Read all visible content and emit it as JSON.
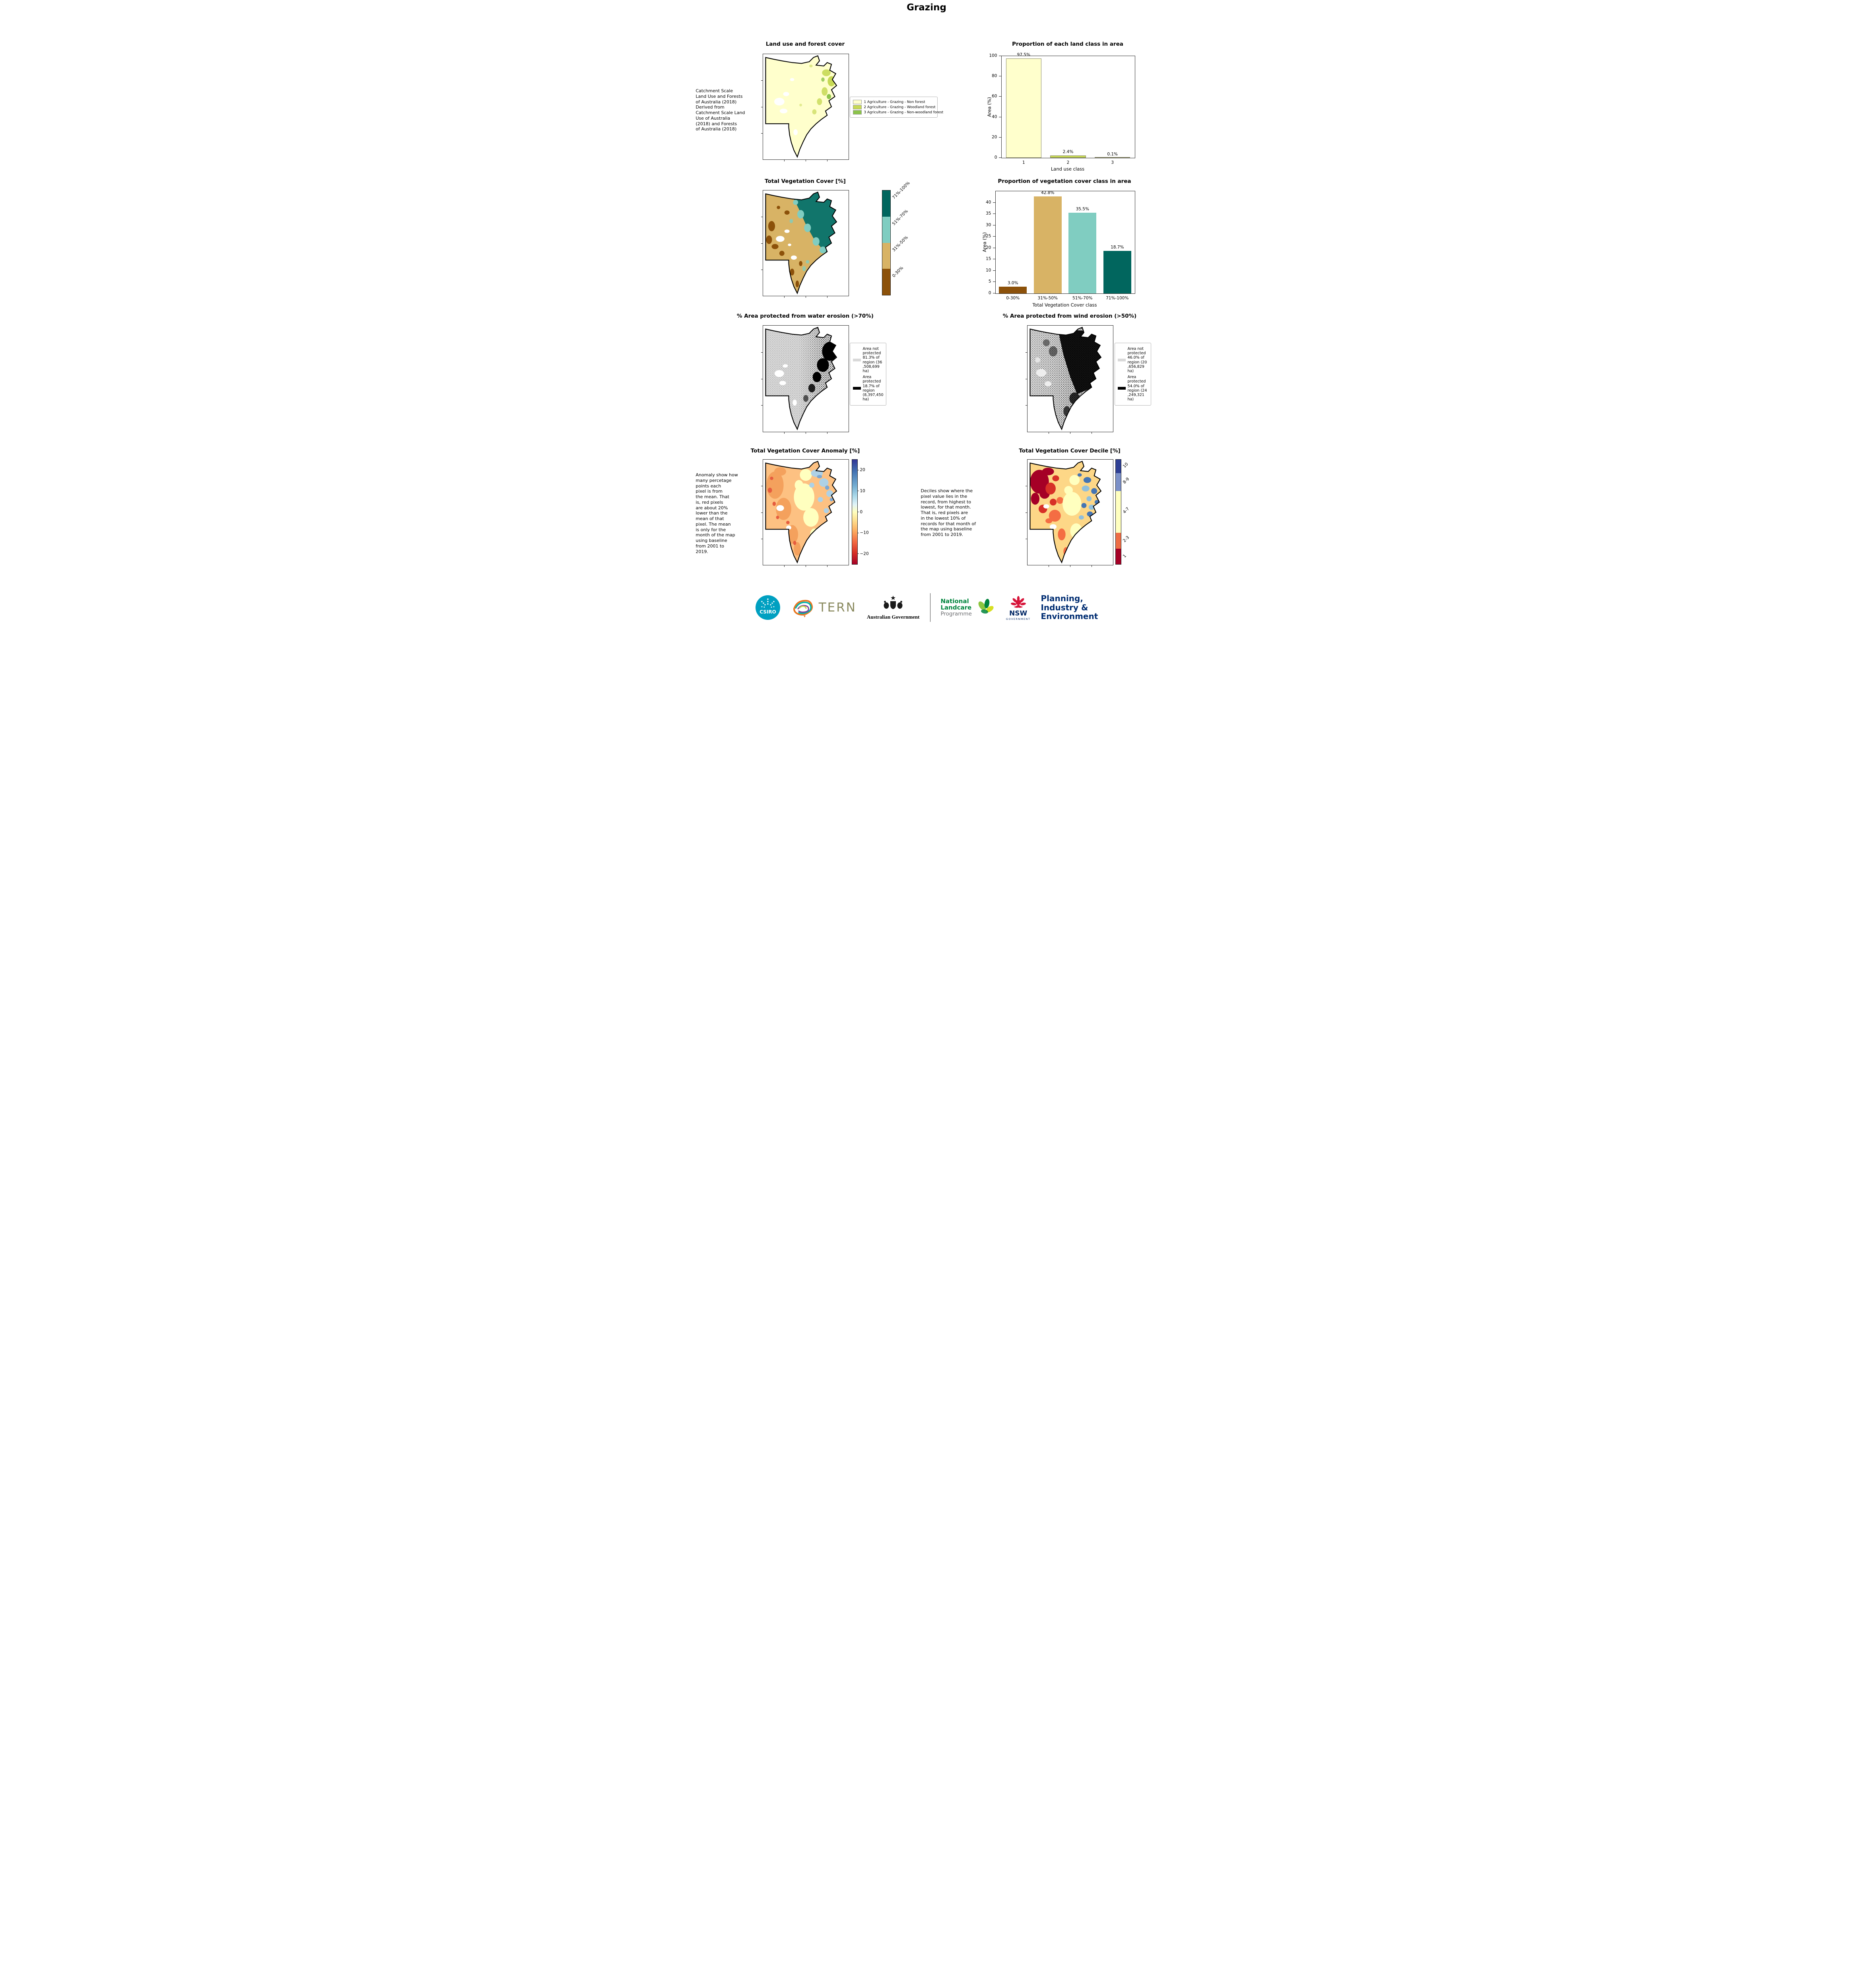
{
  "page": {
    "title": "Grazing"
  },
  "colors": {
    "land1": "#ffffcc",
    "land2": "#c7d955",
    "land3": "#8bc34a",
    "veg_dark_teal": "#01665e",
    "veg_light_teal": "#80cdc1",
    "veg_tan": "#d8b365",
    "veg_brown": "#8c510a",
    "not_protected_gray": "#d9d9d9",
    "protected_black": "#000000",
    "decile_10": "#2e3f94",
    "decile_8_9": "#7b90c8",
    "decile_4_7": "#ffffbf",
    "decile_2_3": "#ee6d45",
    "decile_1": "#a50026",
    "csiro_teal": "#00a0c1",
    "nsw_red": "#d7153a",
    "navy": "#002664",
    "landcare_green": "#00843d",
    "tern_text": "#8a8a5f"
  },
  "panels": {
    "land_use": {
      "title": "Land use and forest cover",
      "side_note": " Catchment Scale\nLand Use and Forests\nof Australia (2018)\nDerived from\nCatchment Scale Land\nUse of Australia\n(2018) and Forests\nof Australia (2018)",
      "legend": [
        {
          "label": "1 Agriculture - Grazing - Non forest"
        },
        {
          "label": "2 Agriculture - Grazing - Woodland forest"
        },
        {
          "label": "3 Agriculture - Grazing - Non-woodland forest"
        }
      ]
    },
    "veg_cover": {
      "title": "Total Vegetation Cover [%]",
      "colorbar_labels": [
        "71%-100%",
        "51%-70%",
        "31%-50%",
        "0-30%"
      ]
    },
    "water_erosion": {
      "title": "% Area protected from water erosion (>70%)",
      "legend": [
        {
          "label": "Area not\nprotected\n81.3% of\nregion (36\n,508,699\nha)"
        },
        {
          "label": "Area\nprotected\n18.7% of\nregion\n(8,397,450\nha)"
        }
      ]
    },
    "wind_erosion": {
      "title": "% Area protected from wind erosion (>50%)",
      "legend": [
        {
          "label": "Area not\nprotected\n46.0% of\nregion (20\n,656,829\nha)"
        },
        {
          "label": "Area\nprotected\n54.0% of\nregion (24\n,249,321\nha)"
        }
      ]
    },
    "anomaly": {
      "title": "Total Vegetation Cover Anomaly [%]",
      "side_note": "Anomaly show how\nmany percetage\npoints each\npixel is from\nthe mean. That\nis, red pixels\nare about 20%\nlower than the\nmean of that\npixel. The mean\nis only for the\nmonth of the map\nusing baseline\nfrom 2001 to\n2019.",
      "colorbar_ticks": [
        "20",
        "10",
        "0",
        "−10",
        "−20"
      ]
    },
    "decile": {
      "title": "Total Vegetation Cover Decile [%]",
      "side_note": "Deciles show where the\npixel value lies in the\nrecord, from highest to\nlowest, for that month.\nThat is, red pixels are\nin the lowest 10% of\nrecords for that month of\nthe map using baseline\nfrom 2001 to 2019.",
      "colorbar_labels": [
        "10",
        "8-9",
        "4-7",
        "2-3",
        "1"
      ]
    }
  },
  "chart_data": [
    {
      "type": "bar",
      "title": "Proportion of each land class in area",
      "categories": [
        "1",
        "2",
        "3"
      ],
      "values": [
        97.5,
        2.4,
        0.1
      ],
      "value_labels": [
        "97.5%",
        "2.4%",
        "0.1%"
      ],
      "colors": [
        "#ffffcc",
        "#c7d955",
        "#8bc34a"
      ],
      "edge": "#8a8a6a",
      "xlabel": "Land use class",
      "ylabel": "Area (%)",
      "ylim": [
        0,
        100
      ],
      "yticks": [
        0,
        20,
        40,
        60,
        80,
        100
      ]
    },
    {
      "type": "bar",
      "title": "Proportion of vegetation cover class in area",
      "categories": [
        "0-30%",
        "31%-50%",
        "51%-70%",
        "71%-100%"
      ],
      "values": [
        3.0,
        42.8,
        35.5,
        18.7
      ],
      "value_labels": [
        "3.0%",
        "42.8%",
        "35.5%",
        "18.7%"
      ],
      "colors": [
        "#8c510a",
        "#d8b365",
        "#80cdc1",
        "#01665e"
      ],
      "edge": "",
      "xlabel": "Total Vegetation Cover class",
      "ylabel": "Area (%)",
      "ylim": [
        0,
        45
      ],
      "yticks": [
        0,
        5,
        10,
        15,
        20,
        25,
        30,
        35,
        40
      ]
    }
  ],
  "footer": {
    "csiro": "CSIRO",
    "tern": "TERN",
    "aus_gov": "Australian Government",
    "landcare_lines": [
      "National",
      "Landcare",
      "Programme"
    ],
    "nsw": "NSW",
    "nsw_sub": "GOVERNMENT",
    "planning_lines": [
      "Planning,",
      "Industry &",
      "Environment"
    ]
  }
}
